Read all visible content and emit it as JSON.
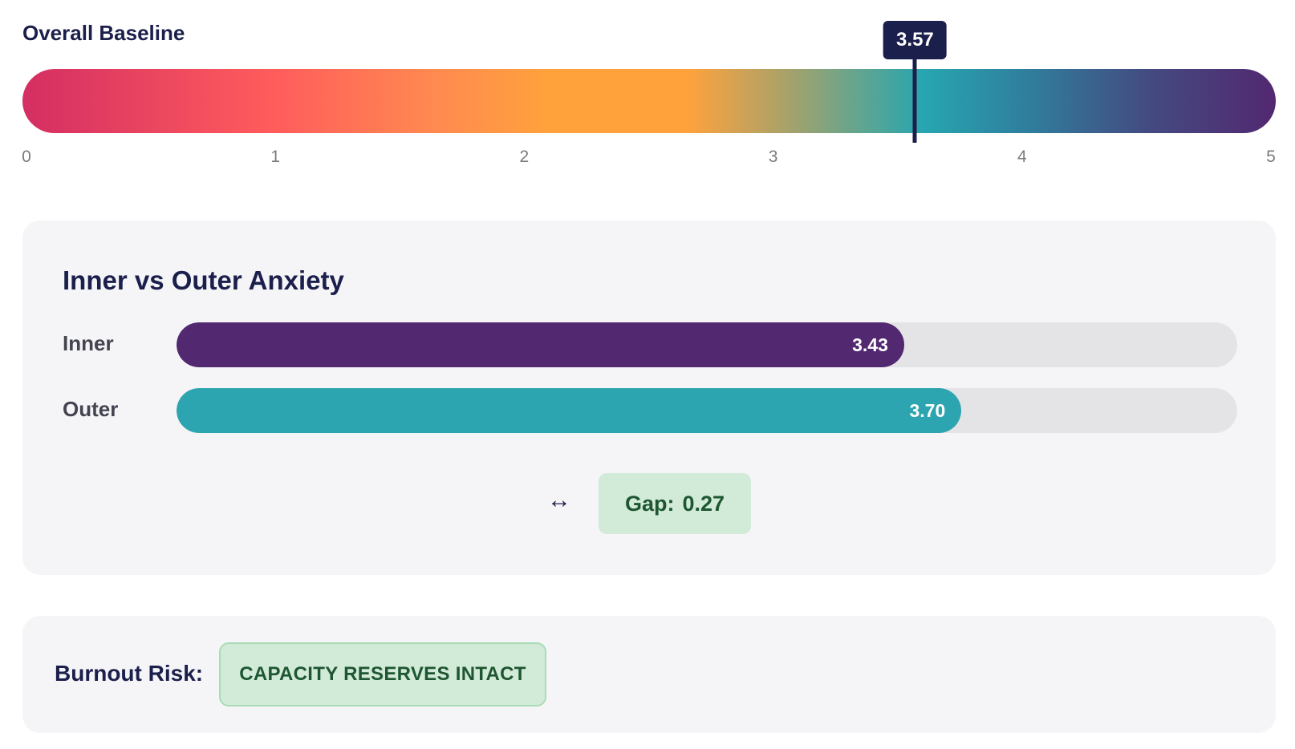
{
  "baseline": {
    "title": "Overall Baseline",
    "value": 3.57,
    "value_label": "3.57",
    "min": 0,
    "max": 5,
    "ticks": [
      "0",
      "1",
      "2",
      "3",
      "4",
      "5"
    ],
    "gradient": [
      "#d42e63",
      "#ff5c5c",
      "#ffa23c",
      "#27a5b0",
      "#522870"
    ],
    "marker_color": "#1b1f4b"
  },
  "anxiety": {
    "title": "Inner vs Outer Anxiety",
    "max": 5,
    "bars": [
      {
        "label": "Inner",
        "value": 3.43,
        "value_label": "3.43",
        "color": "#522870"
      },
      {
        "label": "Outer",
        "value": 3.7,
        "value_label": "3.70",
        "color": "#2ca5b0"
      }
    ],
    "gap": {
      "icon": "left-right-arrow-icon",
      "symbol": "↔",
      "label": "Gap:",
      "value": "0.27"
    }
  },
  "burnout": {
    "label": "Burnout Risk:",
    "status": "CAPACITY RESERVES INTACT",
    "status_color": "#1e5631",
    "status_bg": "#d2ead8"
  }
}
